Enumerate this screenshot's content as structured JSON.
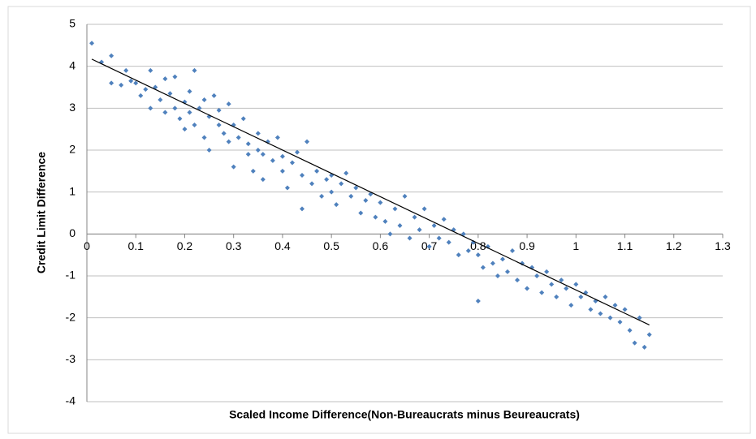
{
  "chart_data": {
    "type": "scatter",
    "x_label": "Scaled Income Difference(Non-Bureaucrats minus Beureaucrats)",
    "y_label": "Credit Limit Difference",
    "xlim": [
      0,
      1.3
    ],
    "ylim": [
      -4,
      5
    ],
    "xticks": [
      0,
      0.1,
      0.2,
      0.3,
      0.4,
      0.5,
      0.6,
      0.7,
      0.8,
      0.9,
      1,
      1.1,
      1.2,
      1.3
    ],
    "yticks": [
      -4,
      -3,
      -2,
      -1,
      0,
      1,
      2,
      3,
      4,
      5
    ],
    "grid": true,
    "series": [
      {
        "color": "#4f81bd",
        "x": [
          0.01,
          0.03,
          0.05,
          0.05,
          0.07,
          0.08,
          0.09,
          0.1,
          0.11,
          0.12,
          0.13,
          0.13,
          0.14,
          0.15,
          0.16,
          0.16,
          0.17,
          0.18,
          0.18,
          0.19,
          0.2,
          0.2,
          0.21,
          0.21,
          0.22,
          0.22,
          0.23,
          0.24,
          0.24,
          0.25,
          0.25,
          0.26,
          0.27,
          0.27,
          0.28,
          0.29,
          0.29,
          0.3,
          0.3,
          0.31,
          0.32,
          0.33,
          0.33,
          0.34,
          0.35,
          0.35,
          0.36,
          0.36,
          0.37,
          0.38,
          0.39,
          0.4,
          0.4,
          0.41,
          0.42,
          0.43,
          0.44,
          0.44,
          0.45,
          0.46,
          0.47,
          0.48,
          0.49,
          0.5,
          0.5,
          0.51,
          0.52,
          0.53,
          0.54,
          0.55,
          0.56,
          0.57,
          0.58,
          0.59,
          0.6,
          0.61,
          0.62,
          0.63,
          0.64,
          0.65,
          0.66,
          0.67,
          0.68,
          0.69,
          0.7,
          0.71,
          0.72,
          0.73,
          0.74,
          0.75,
          0.76,
          0.77,
          0.78,
          0.79,
          0.8,
          0.8,
          0.81,
          0.82,
          0.83,
          0.84,
          0.85,
          0.86,
          0.87,
          0.88,
          0.89,
          0.9,
          0.91,
          0.92,
          0.93,
          0.94,
          0.95,
          0.96,
          0.97,
          0.98,
          0.99,
          1.0,
          1.01,
          1.02,
          1.03,
          1.04,
          1.05,
          1.06,
          1.07,
          1.08,
          1.09,
          1.1,
          1.11,
          1.12,
          1.13,
          1.14,
          1.15
        ],
        "values": [
          4.55,
          4.1,
          4.25,
          3.6,
          3.55,
          3.9,
          3.65,
          3.6,
          3.3,
          3.45,
          3.9,
          3.0,
          3.5,
          3.2,
          3.7,
          2.9,
          3.35,
          3.75,
          3.0,
          2.75,
          3.15,
          2.5,
          3.4,
          2.9,
          3.9,
          2.6,
          3.0,
          2.3,
          3.2,
          2.0,
          2.8,
          3.3,
          2.6,
          2.95,
          2.4,
          3.1,
          2.2,
          1.6,
          2.6,
          2.3,
          2.75,
          1.9,
          2.15,
          1.5,
          2.4,
          2.0,
          1.3,
          1.9,
          2.2,
          1.75,
          2.3,
          1.5,
          1.85,
          1.1,
          1.7,
          1.95,
          0.6,
          1.4,
          2.2,
          1.2,
          1.5,
          0.9,
          1.3,
          1.0,
          1.4,
          0.7,
          1.2,
          1.45,
          0.9,
          1.1,
          0.5,
          0.8,
          0.95,
          0.4,
          0.75,
          0.3,
          0.0,
          0.6,
          0.2,
          0.9,
          -0.1,
          0.4,
          0.1,
          0.6,
          -0.3,
          0.2,
          -0.1,
          0.35,
          -0.2,
          0.1,
          -0.5,
          0.0,
          -0.4,
          -0.2,
          -1.6,
          -0.5,
          -0.8,
          -0.3,
          -0.7,
          -1.0,
          -0.6,
          -0.9,
          -0.4,
          -1.1,
          -0.7,
          -1.3,
          -0.8,
          -1.0,
          -1.4,
          -0.9,
          -1.2,
          -1.5,
          -1.1,
          -1.3,
          -1.7,
          -1.2,
          -1.5,
          -1.4,
          -1.8,
          -1.6,
          -1.9,
          -1.5,
          -2.0,
          -1.7,
          -2.1,
          -1.8,
          -2.3,
          -2.6,
          -2.0,
          -2.7,
          -2.4
        ]
      }
    ],
    "trendline": {
      "color": "#000000",
      "x": [
        0.01,
        1.15
      ],
      "values": [
        4.17,
        -2.17
      ]
    }
  }
}
